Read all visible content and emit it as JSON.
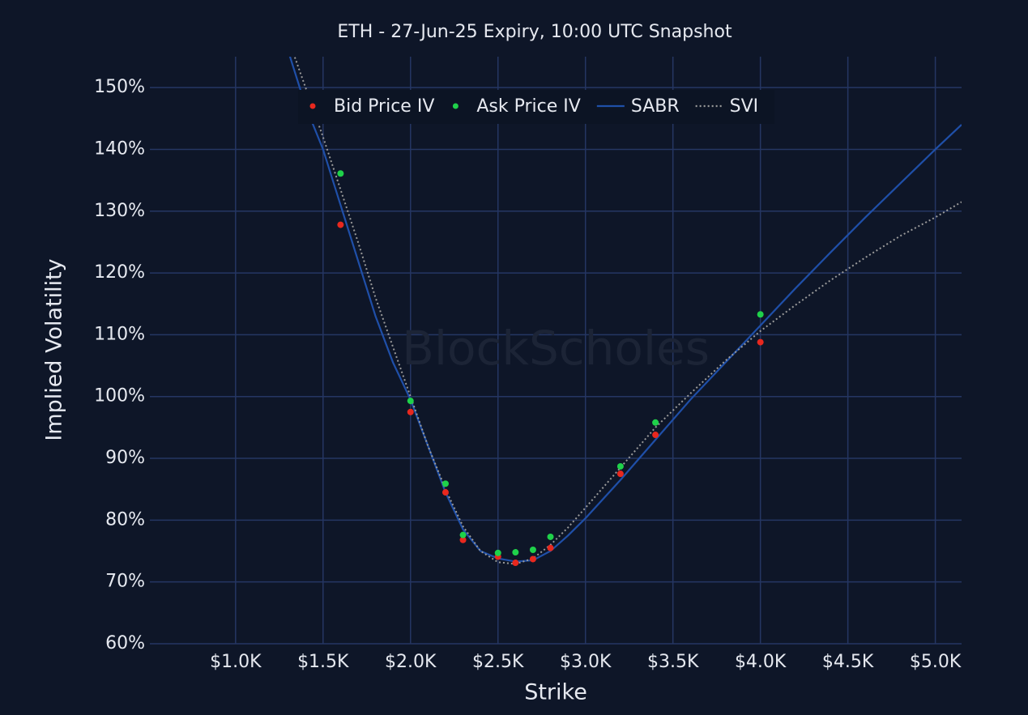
{
  "chart_data": {
    "type": "scatter",
    "title": "ETH - 27-Jun-25 Expiry, 10:00 UTC Snapshot",
    "x_label": "Strike",
    "y_label": "Implied Volatility",
    "watermark": "BlockScholes",
    "xlim": [
      510,
      5150
    ],
    "ylim": [
      60,
      155
    ],
    "xticks": [
      {
        "value": 1000,
        "label": "$1.0K"
      },
      {
        "value": 1500,
        "label": "$1.5K"
      },
      {
        "value": 2000,
        "label": "$2.0K"
      },
      {
        "value": 2500,
        "label": "$2.5K"
      },
      {
        "value": 3000,
        "label": "$3.0K"
      },
      {
        "value": 3500,
        "label": "$3.5K"
      },
      {
        "value": 4000,
        "label": "$4.0K"
      },
      {
        "value": 4500,
        "label": "$4.5K"
      },
      {
        "value": 5000,
        "label": "$5.0K"
      }
    ],
    "yticks": [
      {
        "value": 60,
        "label": "60%"
      },
      {
        "value": 70,
        "label": "70%"
      },
      {
        "value": 80,
        "label": "80%"
      },
      {
        "value": 90,
        "label": "90%"
      },
      {
        "value": 100,
        "label": "100%"
      },
      {
        "value": 110,
        "label": "110%"
      },
      {
        "value": 120,
        "label": "120%"
      },
      {
        "value": 130,
        "label": "130%"
      },
      {
        "value": 140,
        "label": "140%"
      },
      {
        "value": 150,
        "label": "150%"
      }
    ],
    "grid": true,
    "legend": "top",
    "series": [
      {
        "name": "Bid Price IV",
        "color": "#e8281e",
        "mode": "markers",
        "x": [
          1600,
          2000,
          2200,
          2300,
          2500,
          2600,
          2700,
          2800,
          3200,
          3400,
          4000
        ],
        "values": [
          127.8,
          97.5,
          84.5,
          76.8,
          74.1,
          73.1,
          73.7,
          75.5,
          87.5,
          93.8,
          108.8
        ]
      },
      {
        "name": "Ask Price IV",
        "color": "#1fd14a",
        "mode": "markers",
        "x": [
          1600,
          2000,
          2200,
          2300,
          2500,
          2600,
          2700,
          2800,
          3200,
          3400,
          4000
        ],
        "values": [
          136.1,
          99.3,
          85.9,
          77.6,
          74.7,
          74.8,
          75.2,
          77.3,
          88.7,
          95.8,
          113.3
        ]
      },
      {
        "name": "SABR",
        "color": "#1f4fa8",
        "mode": "lines",
        "dash": "solid",
        "x": [
          1300,
          1400,
          1500,
          1600,
          1700,
          1800,
          1900,
          2000,
          2100,
          2200,
          2300,
          2400,
          2500,
          2600,
          2700,
          2800,
          2900,
          3000,
          3200,
          3400,
          3600,
          3800,
          4000,
          4200,
          4400,
          4600,
          4800,
          5000,
          5150
        ],
        "values": [
          156,
          147,
          140,
          131,
          122,
          113,
          105.5,
          99.5,
          92,
          84.5,
          78.5,
          75,
          73.8,
          73.3,
          73.5,
          75,
          77.5,
          80.3,
          86.5,
          93,
          99.5,
          105.5,
          111.5,
          117.5,
          123.3,
          129,
          134.5,
          140,
          144
        ]
      },
      {
        "name": "SVI",
        "color": "#9a9a9a",
        "mode": "lines",
        "dash": "dot",
        "x": [
          1300,
          1400,
          1500,
          1600,
          1700,
          1800,
          1900,
          2000,
          2100,
          2200,
          2300,
          2400,
          2500,
          2600,
          2700,
          2800,
          2900,
          3000,
          3200,
          3400,
          3600,
          3800,
          4000,
          4200,
          4400,
          4600,
          4800,
          5000,
          5150
        ],
        "values": [
          158,
          150,
          142,
          133.5,
          125,
          116,
          108,
          100,
          92,
          85,
          79,
          75,
          73.2,
          72.9,
          73.8,
          76,
          78.8,
          82,
          88.5,
          95,
          100.5,
          105.8,
          110.6,
          114.8,
          118.8,
          122.5,
          126,
          129,
          131.5
        ]
      }
    ]
  }
}
